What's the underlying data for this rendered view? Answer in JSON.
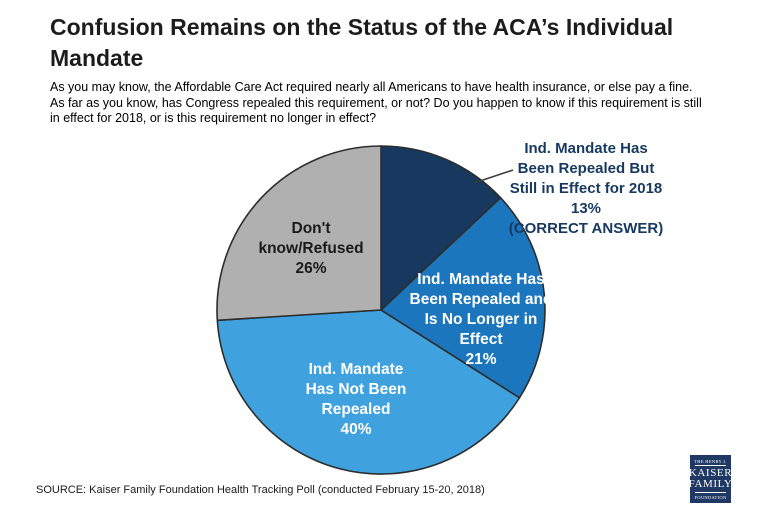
{
  "chart_data": {
    "type": "pie",
    "title": "Confusion Remains on the Status of the ACA’s Individual\nMandate",
    "subtitle": "As you may know, the Affordable Care Act required nearly all Americans to have health insurance, or else pay a fine.\nAs far as you know, has Congress repealed this requirement, or not? Do you happen to know if this requirement is still\nin effect for 2018, or is this requirement no longer in effect?",
    "source": "SOURCE: Kaiser Family Foundation Health Tracking Poll (conducted February 15-20, 2018)",
    "start_angle_deg": 0,
    "direction": "clockwise",
    "legend": "none",
    "outline_color": "#2d2d2d",
    "slices": [
      {
        "id": "repealed-still-in-effect",
        "name": "Ind. Mandate Has Been Repealed But Still in Effect for 2018 (CORRECT ANSWER)",
        "value": 13,
        "color": "#17395f",
        "label": "Ind. Mandate Has\nBeen Repealed But\nStill in Effect for 2018\n13%\n(CORRECT ANSWER)",
        "label_position": "outside"
      },
      {
        "id": "repealed-no-longer-in-effect",
        "name": "Ind. Mandate Has Been Repealed and Is No Longer in Effect",
        "value": 21,
        "color": "#1c76bd",
        "label": "Ind. Mandate Has\nBeen Repealed and\nIs No Longer in\nEffect\n21%",
        "label_position": "inside"
      },
      {
        "id": "not-repealed",
        "name": "Ind. Mandate Has Not Been Repealed",
        "value": 40,
        "color": "#3fa2df",
        "label": "Ind. Mandate\nHas Not Been\nRepealed\n40%",
        "label_position": "inside"
      },
      {
        "id": "dont-know-refused",
        "name": "Don't know/Refused",
        "value": 26,
        "color": "#b0b0b0",
        "label": "Don't\nknow/Refused\n26%",
        "label_position": "inside"
      }
    ]
  },
  "logo": {
    "line1": "THE HENRY J.",
    "line2": "KAISER",
    "line3": "FAMILY",
    "line4": "FOUNDATION"
  }
}
